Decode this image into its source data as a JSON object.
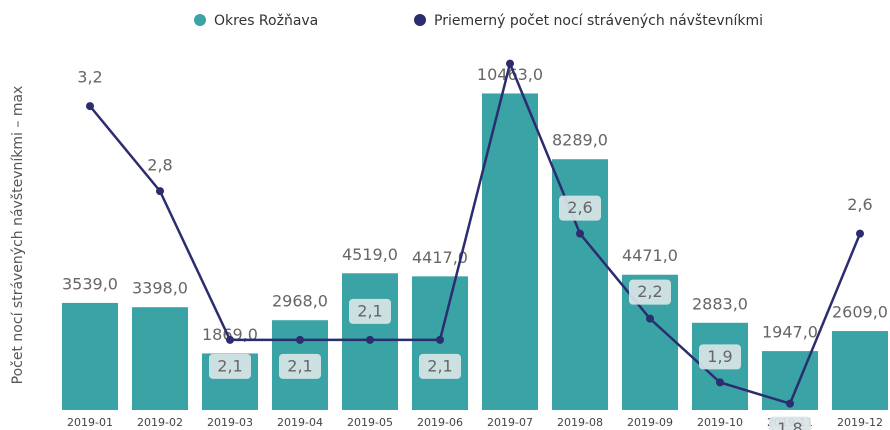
{
  "chart_data": {
    "type": "bar+line",
    "y_axis_label": "Počet nocí strávených návštevníkmi – max",
    "categories": [
      "2019-01",
      "2019-02",
      "2019-03",
      "2019-04",
      "2019-05",
      "2019-06",
      "2019-07",
      "2019-08",
      "2019-09",
      "2019-10",
      "2019-11",
      "2019-12"
    ],
    "series": [
      {
        "name": "Okres Rožňava",
        "type": "bar",
        "color": "#3aa3a6",
        "values": [
          3539,
          3398,
          1869,
          2968,
          4519,
          4417,
          10463,
          8289,
          4471,
          2883,
          1947,
          2609
        ],
        "value_labels": [
          "3539,0",
          "3398,0",
          "1869,0",
          "2968,0",
          "4519,0",
          "4417,0",
          "10463,0",
          "8289,0",
          "4471,0",
          "2883,0",
          "1947,0",
          "2609,0"
        ]
      },
      {
        "name": "Priemerný počet nocí strávených návštevníkmi",
        "type": "line",
        "color": "#2b2d6e",
        "axis": "y2",
        "values": [
          3.2,
          2.8,
          2.1,
          2.1,
          2.1,
          2.1,
          3.4,
          2.6,
          2.2,
          1.9,
          1.8,
          2.6
        ],
        "value_labels": [
          "3,2",
          "2,8",
          "2,1",
          "2,1",
          "2,1",
          "2,1",
          null,
          "2,6",
          "2,2",
          "1,9",
          "1,8",
          "2,6"
        ]
      }
    ],
    "ylim": [
      0,
      11800
    ],
    "y2lim": [
      1.77,
      3.45
    ]
  }
}
